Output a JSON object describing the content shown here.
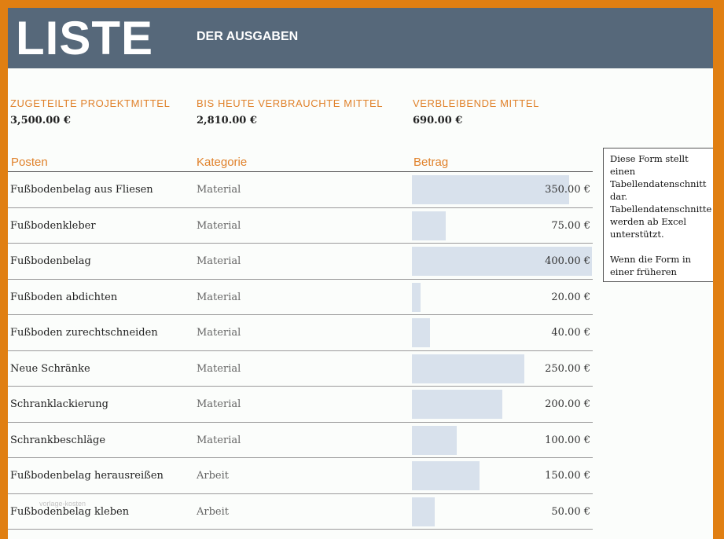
{
  "header": {
    "title": "LISTE",
    "subtitle": "DER AUSGABEN"
  },
  "summary": [
    {
      "label": "ZUGETEILTE PROJEKTMITTEL",
      "value": "3,500.00 €"
    },
    {
      "label": "BIS HEUTE VERBRAUCHTE MITTEL",
      "value": "2,810.00 €"
    },
    {
      "label": "VERBLEIBENDE MITTEL",
      "value": "690.00 €"
    }
  ],
  "table": {
    "columns": [
      "Posten",
      "Kategorie",
      "Betrag"
    ],
    "bar_max": 400,
    "rows": [
      {
        "item": "Fußbodenbelag aus Fliesen",
        "category": "Material",
        "amount": "350.00 €",
        "value": 350
      },
      {
        "item": "Fußbodenkleber",
        "category": "Material",
        "amount": "75.00 €",
        "value": 75
      },
      {
        "item": "Fußbodenbelag",
        "category": "Material",
        "amount": "400.00 €",
        "value": 400
      },
      {
        "item": "Fußboden abdichten",
        "category": "Material",
        "amount": "20.00 €",
        "value": 20
      },
      {
        "item": "Fußboden zurechtschneiden",
        "category": "Material",
        "amount": "40.00 €",
        "value": 40
      },
      {
        "item": "Neue Schränke",
        "category": "Material",
        "amount": "250.00 €",
        "value": 250
      },
      {
        "item": "Schranklackierung",
        "category": "Material",
        "amount": "200.00 €",
        "value": 200
      },
      {
        "item": "Schrankbeschläge",
        "category": "Material",
        "amount": "100.00 €",
        "value": 100
      },
      {
        "item": "Fußbodenbelag herausreißen",
        "category": "Arbeit",
        "amount": "150.00 €",
        "value": 150
      },
      {
        "item": "Fußbodenbelag kleben",
        "category": "Arbeit",
        "amount": "50.00 €",
        "value": 50
      }
    ]
  },
  "note": {
    "paragraph1": "Diese Form stellt einen Tabellendatenschnitt dar. Tabellendatenschnitte werden ab Excel unterstützt.",
    "paragraph2": "Wenn die Form in einer früheren"
  },
  "watermark": "vorlage-kosten",
  "colors": {
    "background_border": "#e07f12",
    "banner": "#56687a",
    "accent": "#e0812a",
    "bar": "#d8e1ec"
  }
}
